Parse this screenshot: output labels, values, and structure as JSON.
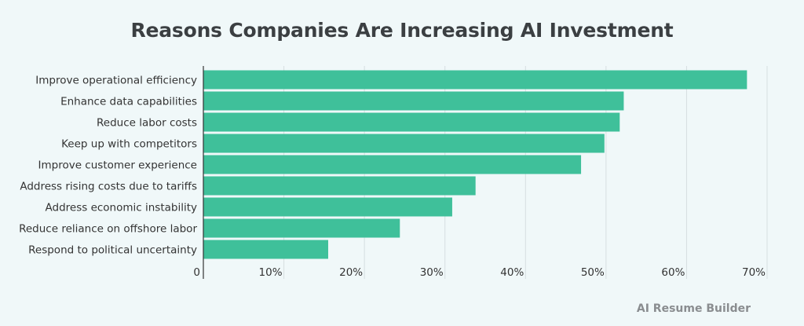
{
  "title": "Reasons Companies Are Increasing AI Investment",
  "footer": "AI Resume Builder",
  "colors": {
    "bar": "#3fc09a",
    "grid": "#d6dfe1",
    "axis": "#333333"
  },
  "chart_data": {
    "type": "bar",
    "orientation": "horizontal",
    "title": "Reasons Companies Are Increasing AI Investment",
    "categories": [
      "Improve operational efficiency",
      "Enhance data capabilities",
      "Reduce labor costs",
      "Keep up with competitors",
      "Improve customer experience",
      "Address rising costs due to tariffs",
      "Address economic instability",
      "Reduce reliance on offshore labor",
      "Respond to political uncertainty"
    ],
    "values": [
      67.5,
      52.2,
      51.7,
      49.8,
      46.9,
      33.8,
      30.9,
      24.4,
      15.5
    ],
    "xlim": [
      0,
      70
    ],
    "xticks": [
      0,
      10,
      20,
      30,
      40,
      50,
      60,
      70
    ],
    "xtick_labels": [
      "0",
      "10%",
      "20%",
      "30%",
      "40%",
      "50%",
      "60%",
      "70%"
    ],
    "grid": true,
    "xlabel": "",
    "ylabel": ""
  }
}
